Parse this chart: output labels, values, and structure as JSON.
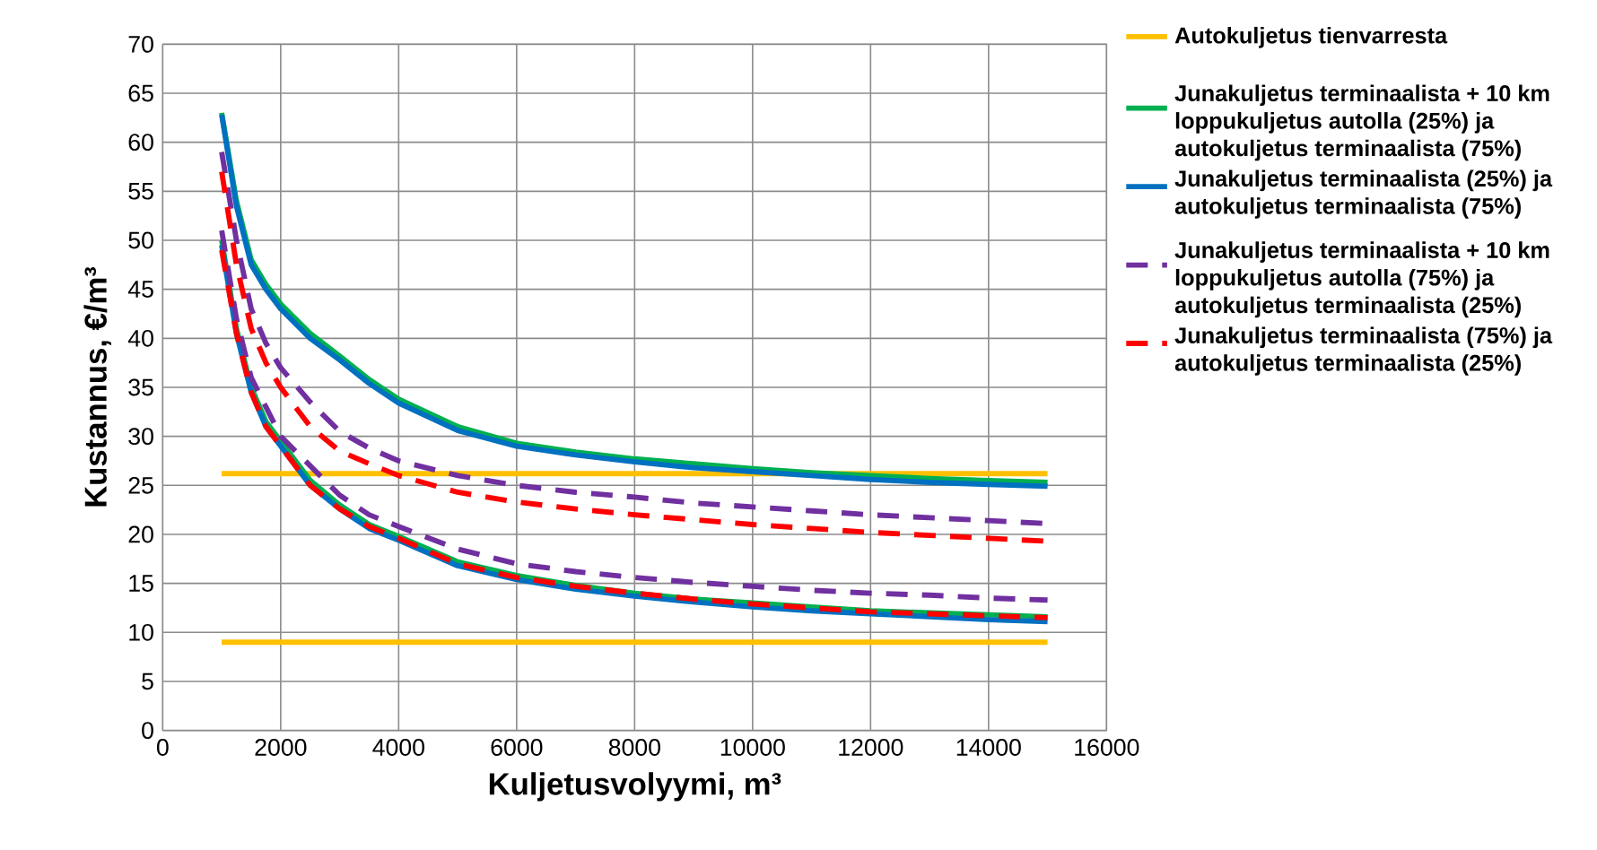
{
  "chart_data": {
    "type": "line",
    "xlabel": "Kuljetusvolyymi, m³",
    "ylabel": "Kustannus, €/m³",
    "xlim": [
      0,
      16000
    ],
    "ylim": [
      0,
      70
    ],
    "xticks": [
      0,
      2000,
      4000,
      6000,
      8000,
      10000,
      12000,
      14000,
      16000
    ],
    "yticks": [
      0,
      5,
      10,
      15,
      20,
      25,
      30,
      35,
      40,
      45,
      50,
      55,
      60,
      65,
      70
    ],
    "grid": true,
    "legend": "right",
    "marker": "none",
    "series": [
      {
        "name": "Autokuljetus tienvarresta",
        "color": "#ffc000",
        "line_style": "solid",
        "x": [
          1000,
          15000
        ],
        "values": [
          26.2,
          26.2
        ]
      },
      {
        "color": "#ffc000",
        "line_style": "solid",
        "x": [
          1000,
          15000
        ],
        "values": [
          9.0,
          9.0
        ]
      },
      {
        "name": "Junakuljetus terminaalista + 10 km loppukuljetus autolla (25%) ja autokuljetus terminaalista (75%)",
        "color": "#00b050",
        "line_style": "solid",
        "x": [
          1000,
          1250,
          1500,
          1750,
          2000,
          2500,
          3000,
          3500,
          4000,
          5000,
          6000,
          7000,
          8000,
          9000,
          10000,
          11000,
          12000,
          13000,
          14000,
          15000
        ],
        "values": [
          63,
          54,
          48,
          45.5,
          43.5,
          40.5,
          38.2,
          35.8,
          33.8,
          31,
          29.3,
          28.4,
          27.7,
          27.2,
          26.7,
          26.3,
          26,
          25.7,
          25.5,
          25.3
        ]
      },
      {
        "color": "#00b050",
        "line_style": "solid",
        "x": [
          1000,
          1250,
          1500,
          1750,
          2000,
          2500,
          3000,
          3500,
          4000,
          5000,
          6000,
          7000,
          8000,
          9000,
          10000,
          11000,
          12000,
          13000,
          14000,
          15000
        ],
        "values": [
          50,
          41,
          35,
          31.5,
          29.5,
          25.5,
          23,
          21,
          19.8,
          17.2,
          15.8,
          14.8,
          14,
          13.4,
          13,
          12.6,
          12.2,
          12,
          11.8,
          11.6
        ]
      },
      {
        "name": "Junakuljetus terminaalista (25%) ja autokuljetus terminaalista (75%)",
        "color": "#0070c0",
        "line_style": "solid",
        "x": [
          1000,
          1250,
          1500,
          1750,
          2000,
          2500,
          3000,
          3500,
          4000,
          5000,
          6000,
          7000,
          8000,
          9000,
          10000,
          11000,
          12000,
          13000,
          14000,
          15000
        ],
        "values": [
          62.8,
          53.5,
          47.5,
          45,
          43,
          40,
          37.8,
          35.4,
          33.4,
          30.6,
          29,
          28.1,
          27.4,
          26.8,
          26.4,
          26,
          25.6,
          25.3,
          25.1,
          24.9
        ]
      },
      {
        "color": "#0070c0",
        "line_style": "solid",
        "x": [
          1000,
          1250,
          1500,
          1750,
          2000,
          2500,
          3000,
          3500,
          4000,
          5000,
          6000,
          7000,
          8000,
          9000,
          10000,
          11000,
          12000,
          13000,
          14000,
          15000
        ],
        "values": [
          49.5,
          40.5,
          34.5,
          31,
          29,
          25,
          22.6,
          20.6,
          19.4,
          16.8,
          15.4,
          14.4,
          13.7,
          13.1,
          12.6,
          12.2,
          11.9,
          11.6,
          11.3,
          11.1
        ]
      },
      {
        "name": "Junakuljetus terminaalista + 10 km loppukuljetus autolla (75%) ja autokuljetus terminaalista (25%)",
        "color": "#7030a0",
        "line_style": "dashed",
        "x": [
          1000,
          1250,
          1500,
          1750,
          2000,
          2500,
          3000,
          3500,
          4000,
          5000,
          6000,
          7000,
          8000,
          9000,
          10000,
          11000,
          12000,
          13000,
          14000,
          15000
        ],
        "values": [
          59,
          50,
          43,
          39.5,
          37,
          33.5,
          30.5,
          28.8,
          27.5,
          26,
          25,
          24.3,
          23.8,
          23.2,
          22.8,
          22.4,
          22,
          21.7,
          21.4,
          21.1
        ]
      },
      {
        "color": "#7030a0",
        "line_style": "dashed",
        "x": [
          1000,
          1250,
          1500,
          1750,
          2000,
          2500,
          3000,
          3500,
          4000,
          5000,
          6000,
          7000,
          8000,
          9000,
          10000,
          11000,
          12000,
          13000,
          14000,
          15000
        ],
        "values": [
          51,
          42,
          36,
          33,
          30,
          27,
          24,
          22,
          20.8,
          18.5,
          17,
          16.2,
          15.6,
          15.1,
          14.7,
          14.3,
          14,
          13.8,
          13.5,
          13.3
        ]
      },
      {
        "name": "Junakuljetus terminaalista (75%) ja autokuljetus terminaalista (25%)",
        "color": "#ff0000",
        "line_style": "dashed",
        "x": [
          1000,
          1250,
          1500,
          1750,
          2000,
          2500,
          3000,
          3500,
          4000,
          5000,
          6000,
          7000,
          8000,
          9000,
          10000,
          11000,
          12000,
          13000,
          14000,
          15000
        ],
        "values": [
          57,
          47.5,
          41,
          37.5,
          35,
          31,
          28.5,
          27.2,
          26,
          24.3,
          23.3,
          22.6,
          22,
          21.5,
          21,
          20.6,
          20.2,
          19.9,
          19.6,
          19.3
        ]
      },
      {
        "color": "#ff0000",
        "line_style": "dashed",
        "x": [
          1000,
          1250,
          1500,
          1750,
          2000,
          2500,
          3000,
          3500,
          4000,
          5000,
          6000,
          7000,
          8000,
          9000,
          10000,
          11000,
          12000,
          13000,
          14000,
          15000
        ],
        "values": [
          49,
          40.5,
          34.5,
          31,
          29,
          25,
          22.6,
          20.8,
          19.6,
          17,
          15.6,
          14.7,
          14,
          13.4,
          12.9,
          12.5,
          12.1,
          11.9,
          11.7,
          11.5
        ]
      }
    ]
  }
}
